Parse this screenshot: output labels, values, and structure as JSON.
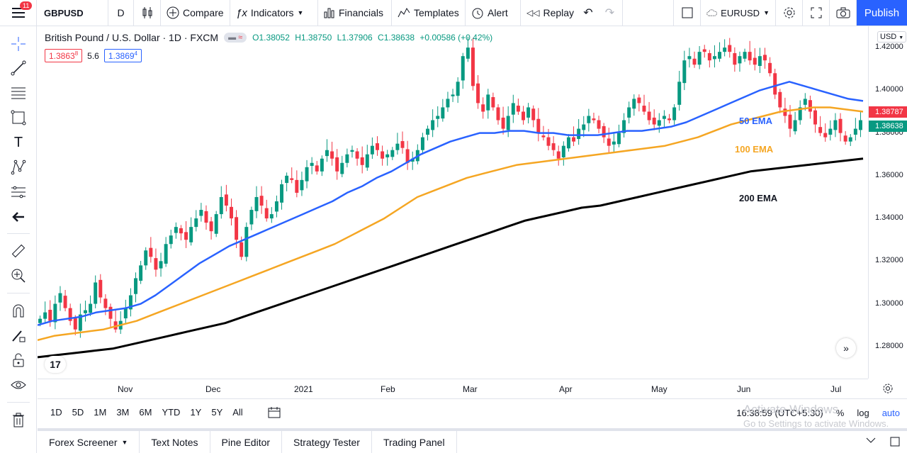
{
  "topbar": {
    "menu_badge": "11",
    "symbol": "GBPUSD",
    "interval": "D",
    "compare": "Compare",
    "indicators": "Indicators",
    "financials": "Financials",
    "templates": "Templates",
    "alert": "Alert",
    "replay": "Replay",
    "compare_symbol": "EURUSD",
    "publish": "Publish"
  },
  "legend": {
    "title": "British Pound / U.S. Dollar · 1D · FXCM",
    "pill": "≈",
    "open": "O1.38052",
    "high": "H1.38750",
    "low": "L1.37906",
    "close": "C1.38638",
    "change": "+0.00586 (+0.42%)",
    "bid": "1.3863",
    "bid_sup": "8",
    "spread": "5.6",
    "ask": "1.3869",
    "ask_sup": "4"
  },
  "price_axis": {
    "currency": "USD",
    "ticks": [
      "1.42000",
      "1.40000",
      "1.38000",
      "1.36000",
      "1.34000",
      "1.32000",
      "1.30000",
      "1.28000"
    ],
    "label_red": "1.38787",
    "label_green": "1.38638"
  },
  "time_axis": {
    "ticks": [
      "Nov",
      "Dec",
      "2021",
      "Feb",
      "Mar",
      "Apr",
      "May",
      "Jun",
      "Jul"
    ]
  },
  "ema_labels": {
    "ema50": "50 EMA",
    "ema100": "100 EMA",
    "ema200": "200 EMA"
  },
  "ranges": [
    "1D",
    "5D",
    "1M",
    "3M",
    "6M",
    "YTD",
    "1Y",
    "5Y",
    "All"
  ],
  "status": {
    "time": "16:38:59 (UTC+5:30)",
    "percent": "%",
    "log": "log",
    "auto": "auto"
  },
  "bottom_tabs": [
    "Forex Screener",
    "Text Notes",
    "Pine Editor",
    "Strategy Tester",
    "Trading Panel"
  ],
  "watermark": {
    "line1": "Activate Windows",
    "line2": "Go to Settings to activate Windows."
  },
  "colors": {
    "up": "#089981",
    "down": "#f23645",
    "ema50": "#2962ff",
    "ema100": "#f5a623",
    "ema200": "#000000",
    "accent": "#2962ff"
  },
  "chart_data": {
    "type": "candlestick",
    "symbol": "GBPUSD",
    "ylim": [
      1.265,
      1.43
    ],
    "close_series": [
      1.293,
      1.296,
      1.292,
      1.3,
      1.305,
      1.298,
      1.292,
      1.288,
      1.295,
      1.297,
      1.3,
      1.31,
      1.303,
      1.298,
      1.293,
      1.288,
      1.292,
      1.298,
      1.304,
      1.312,
      1.318,
      1.325,
      1.322,
      1.316,
      1.32,
      1.328,
      1.332,
      1.336,
      1.333,
      1.33,
      1.336,
      1.34,
      1.344,
      1.338,
      1.334,
      1.342,
      1.35,
      1.346,
      1.34,
      1.33,
      1.322,
      1.336,
      1.344,
      1.35,
      1.346,
      1.34,
      1.342,
      1.348,
      1.356,
      1.36,
      1.358,
      1.352,
      1.358,
      1.364,
      1.366,
      1.362,
      1.368,
      1.372,
      1.368,
      1.362,
      1.366,
      1.37,
      1.372,
      1.368,
      1.365,
      1.37,
      1.374,
      1.372,
      1.368,
      1.37,
      1.372,
      1.375,
      1.373,
      1.366,
      1.368,
      1.372,
      1.378,
      1.382,
      1.386,
      1.388,
      1.392,
      1.396,
      1.398,
      1.404,
      1.416,
      1.42,
      1.402,
      1.394,
      1.39,
      1.398,
      1.392,
      1.386,
      1.382,
      1.388,
      1.394,
      1.39,
      1.386,
      1.392,
      1.386,
      1.38,
      1.378,
      1.374,
      1.372,
      1.368,
      1.374,
      1.378,
      1.376,
      1.382,
      1.384,
      1.388,
      1.386,
      1.382,
      1.378,
      1.374,
      1.376,
      1.38,
      1.386,
      1.392,
      1.396,
      1.394,
      1.39,
      1.386,
      1.384,
      1.386,
      1.388,
      1.386,
      1.392,
      1.404,
      1.414,
      1.416,
      1.412,
      1.418,
      1.418,
      1.414,
      1.416,
      1.418,
      1.42,
      1.418,
      1.412,
      1.416,
      1.418,
      1.414,
      1.412,
      1.416,
      1.414,
      1.408,
      1.398,
      1.392,
      1.388,
      1.382,
      1.386,
      1.392,
      1.396,
      1.39,
      1.384,
      1.38,
      1.378,
      1.382,
      1.386,
      1.38,
      1.376,
      1.378,
      1.382,
      1.386
    ],
    "ema50": [
      1.29,
      1.292,
      1.293,
      1.294,
      1.296,
      1.297,
      1.298,
      1.3,
      1.304,
      1.309,
      1.314,
      1.319,
      1.323,
      1.327,
      1.33,
      1.333,
      1.336,
      1.339,
      1.342,
      1.345,
      1.348,
      1.352,
      1.355,
      1.359,
      1.362,
      1.366,
      1.37,
      1.373,
      1.376,
      1.378,
      1.38,
      1.38,
      1.381,
      1.381,
      1.38,
      1.38,
      1.379,
      1.379,
      1.379,
      1.38,
      1.381,
      1.381,
      1.382,
      1.383,
      1.385,
      1.388,
      1.391,
      1.394,
      1.397,
      1.4,
      1.402,
      1.404,
      1.402,
      1.4,
      1.398,
      1.396,
      1.395
    ],
    "ema100": [
      1.283,
      1.285,
      1.286,
      1.287,
      1.288,
      1.29,
      1.292,
      1.295,
      1.298,
      1.301,
      1.304,
      1.307,
      1.31,
      1.313,
      1.316,
      1.319,
      1.322,
      1.325,
      1.328,
      1.332,
      1.336,
      1.34,
      1.345,
      1.35,
      1.353,
      1.356,
      1.359,
      1.361,
      1.363,
      1.365,
      1.366,
      1.367,
      1.368,
      1.369,
      1.37,
      1.371,
      1.372,
      1.373,
      1.374,
      1.376,
      1.378,
      1.381,
      1.384,
      1.386,
      1.388,
      1.39,
      1.391,
      1.392,
      1.392,
      1.391,
      1.39
    ],
    "ema200": [
      1.275,
      1.276,
      1.277,
      1.278,
      1.279,
      1.281,
      1.283,
      1.285,
      1.287,
      1.289,
      1.291,
      1.294,
      1.297,
      1.3,
      1.303,
      1.306,
      1.309,
      1.312,
      1.315,
      1.318,
      1.321,
      1.324,
      1.327,
      1.33,
      1.333,
      1.336,
      1.339,
      1.341,
      1.343,
      1.345,
      1.346,
      1.348,
      1.35,
      1.352,
      1.354,
      1.356,
      1.358,
      1.36,
      1.362,
      1.363,
      1.364,
      1.365,
      1.366,
      1.367,
      1.368
    ]
  }
}
